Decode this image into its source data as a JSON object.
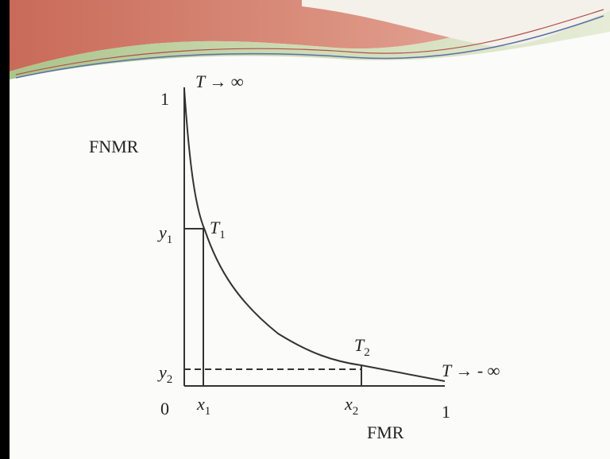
{
  "slide": {
    "diagram": {
      "y_axis_label": "FNMR",
      "x_axis_label": "FMR",
      "origin": "0",
      "y_max": "1",
      "x_max": "1",
      "top_annotation": "T → ∞",
      "bottom_annotation": "T → - ∞",
      "points": [
        {
          "x": {
            "base": "x",
            "sub": "1"
          },
          "y": {
            "base": "y",
            "sub": "1"
          },
          "t": {
            "base": "T",
            "sub": "1"
          }
        },
        {
          "x": {
            "base": "x",
            "sub": "2"
          },
          "y": {
            "base": "y",
            "sub": "2"
          },
          "t": {
            "base": "T",
            "sub": "2"
          }
        }
      ]
    }
  }
}
